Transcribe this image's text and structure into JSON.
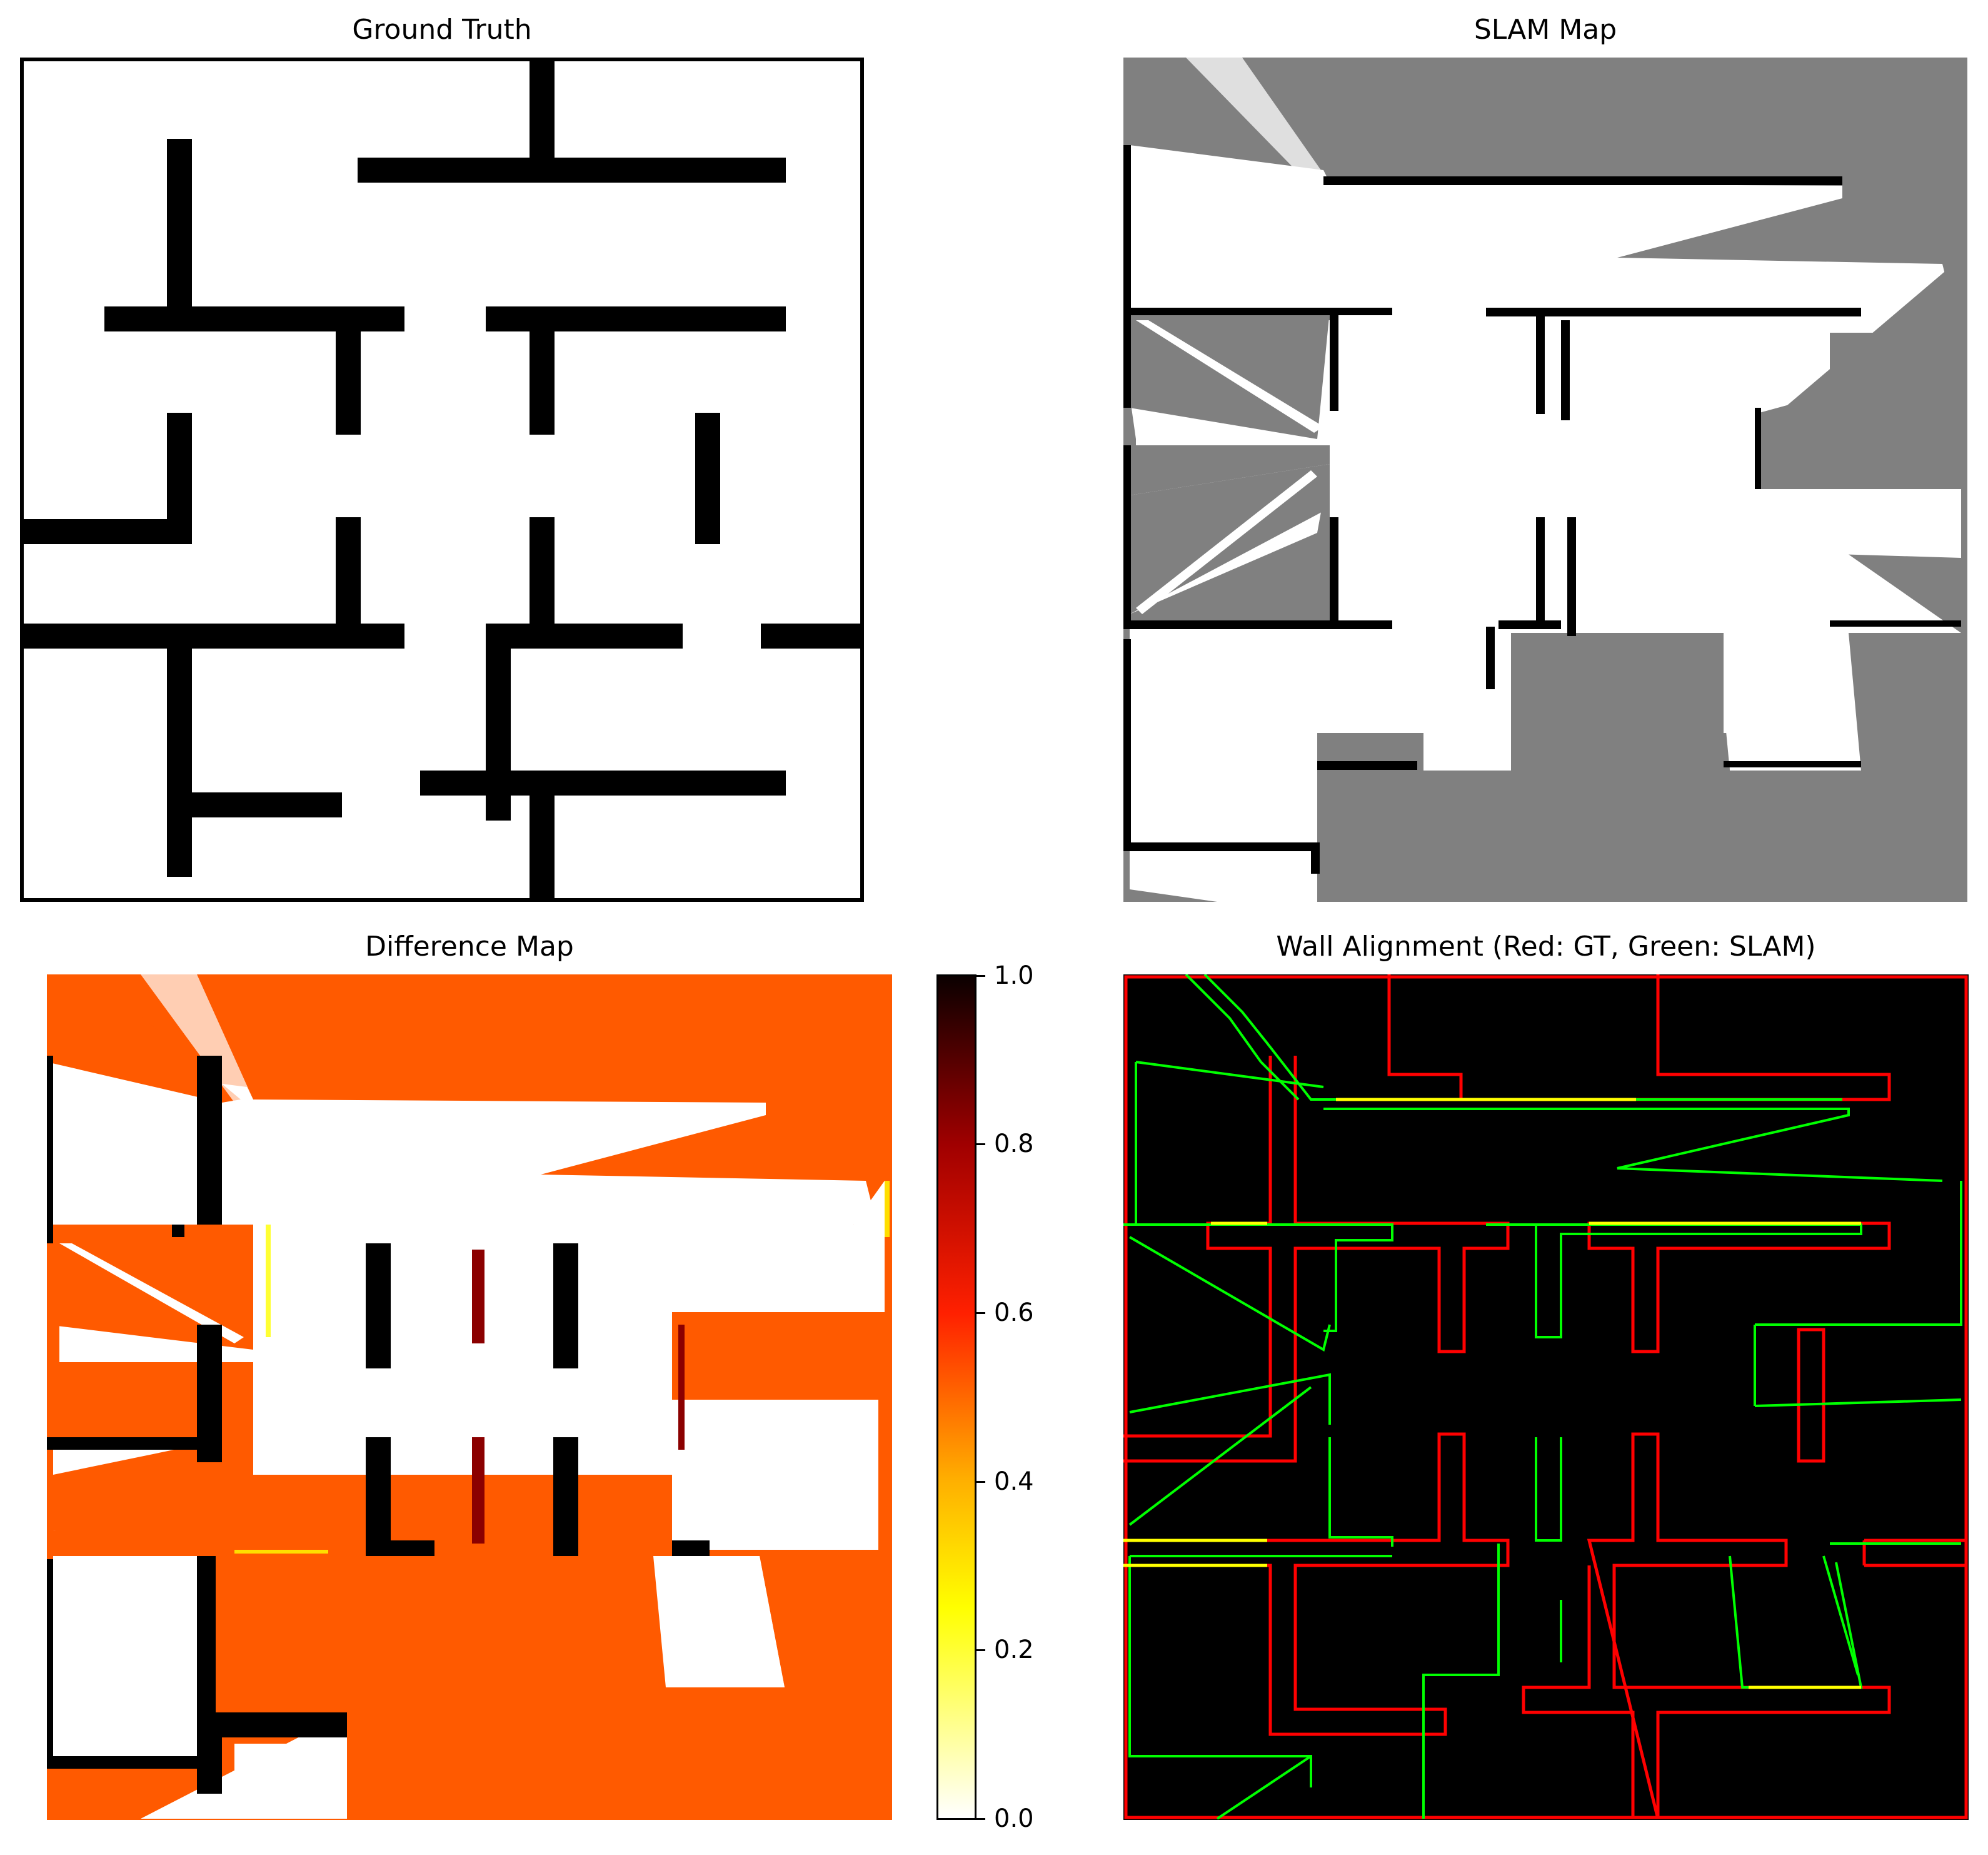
{
  "panels": {
    "ground_truth": {
      "title": "Ground Truth"
    },
    "slam_map": {
      "title": "SLAM Map"
    },
    "difference_map": {
      "title": "Difference Map"
    },
    "wall_alignment": {
      "title": "Wall Alignment (Red: GT, Green: SLAM)"
    }
  },
  "colorbar": {
    "ticks": [
      "0.0",
      "0.2",
      "0.4",
      "0.6",
      "0.8",
      "1.0"
    ],
    "range": [
      0.0,
      1.0
    ],
    "colormap": "hot_r"
  },
  "colors": {
    "wall": "#000000",
    "free": "#ffffff",
    "unknown": "#808080",
    "diff_unknown": "#ff5a00",
    "gt_edge": "#ff0000",
    "slam_edge": "#00ff00",
    "overlap_edge": "#ffff00",
    "alignment_bg": "#000000"
  },
  "chart_data": [
    {
      "type": "heatmap",
      "title": "Ground Truth",
      "description_values": "binary occupancy grid: walls (black) and free space (white)"
    },
    {
      "type": "heatmap",
      "title": "SLAM Map",
      "description_values": "occupancy grid: walls (black), free (white), unknown (gray)"
    },
    {
      "type": "heatmap",
      "title": "Difference Map",
      "colorbar_range": [
        0.0,
        1.0
      ],
      "colorbar_ticks": [
        0.0,
        0.2,
        0.4,
        0.6,
        0.8,
        1.0
      ]
    },
    {
      "type": "heatmap",
      "title": "Wall Alignment (Red: GT, Green: SLAM)",
      "legend": [
        "Red: GT",
        "Green: SLAM"
      ]
    }
  ]
}
